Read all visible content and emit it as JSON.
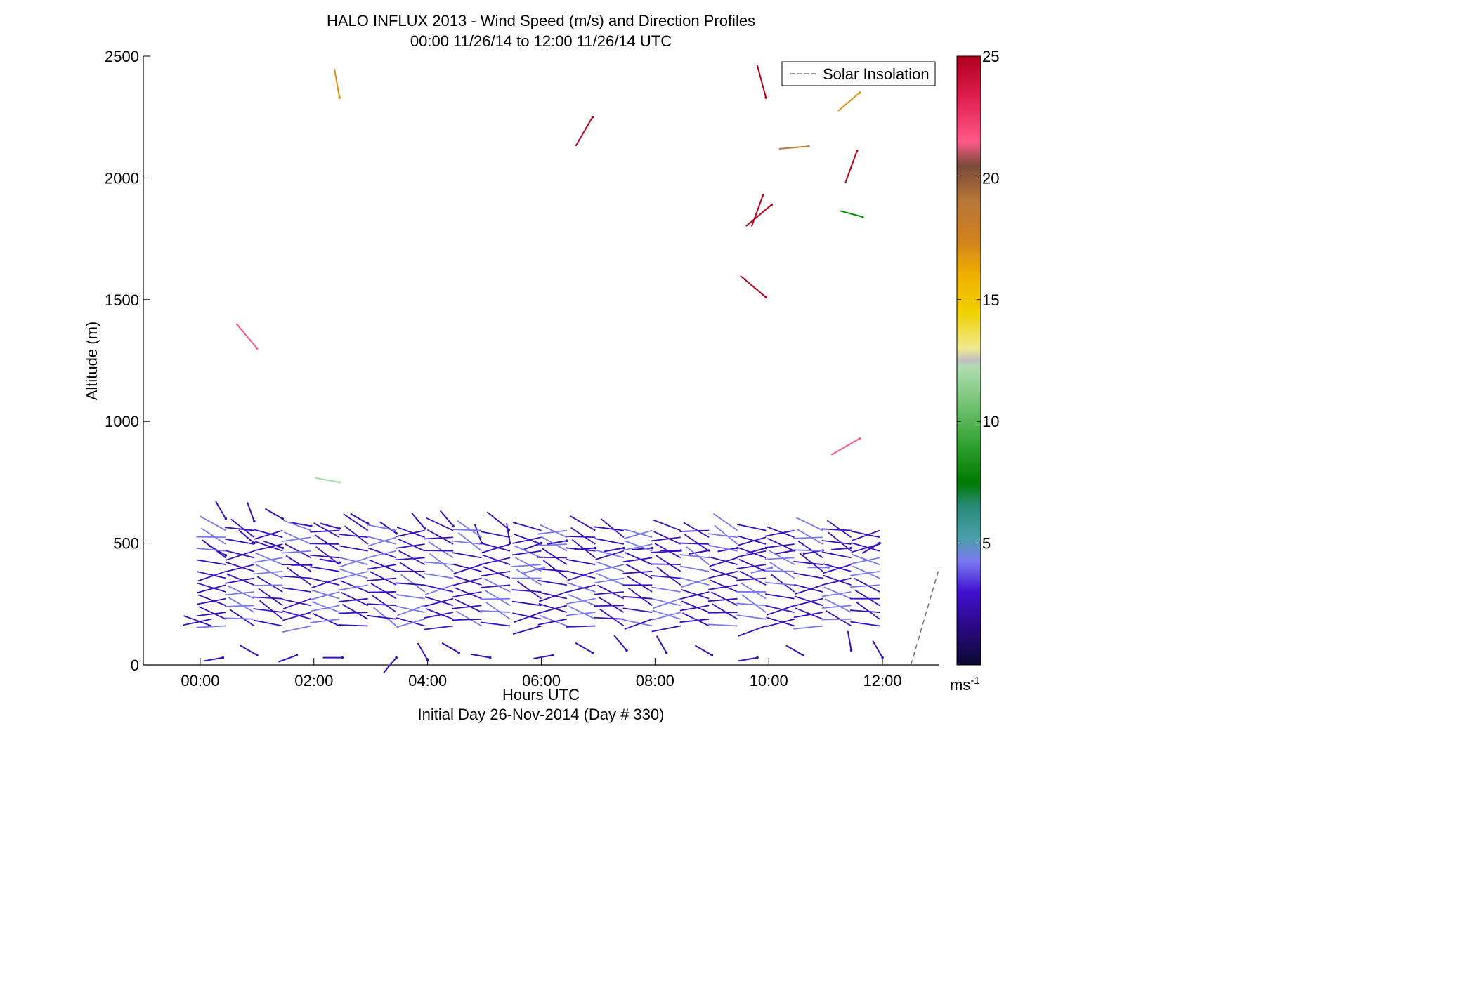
{
  "title_line1": "HALO INFLUX 2013 - Wind Speed (m/s) and Direction Profiles",
  "title_line2": "00:00 11/26/14 to 12:00 11/26/14  UTC",
  "xlabel": "Hours UTC",
  "xlabel2": "Initial Day 26-Nov-2014 (Day # 330)",
  "ylabel": "Altitude (m)",
  "legend": {
    "label": "Solar Insolation",
    "style": "dashed"
  },
  "colorbar": {
    "unit_base": "ms",
    "unit_exp": "-1",
    "range": [
      0,
      25
    ],
    "ticks": [
      "5",
      "10",
      "15",
      "20",
      "25"
    ]
  },
  "chart_data": {
    "type": "scatter",
    "title": "HALO INFLUX 2013 - Wind Speed (m/s) and Direction Profiles",
    "xlabel": "Hours UTC",
    "ylabel": "Altitude (m)",
    "xlim": [
      -1,
      13
    ],
    "ylim": [
      0,
      2500
    ],
    "xticks": [
      0,
      2,
      4,
      6,
      8,
      10,
      12
    ],
    "xtick_labels": [
      "00:00",
      "02:00",
      "04:00",
      "06:00",
      "08:00",
      "10:00",
      "12:00"
    ],
    "yticks": [
      0,
      500,
      1000,
      1500,
      2000,
      2500
    ],
    "ytick_labels": [
      "0",
      "500",
      "1000",
      "1500",
      "2000",
      "2500"
    ],
    "legend_position": "top-right",
    "colormap": [
      "#0a0a30",
      "#3a10c0",
      "#7a7af0",
      "#4aa0a8",
      "#009000",
      "#a8dca8",
      "#c8c8c8",
      "#f0d000",
      "#e09010",
      "#b87838",
      "#7a4a3a",
      "#ff5a8a",
      "#b0001e"
    ],
    "vector_barbs_note": "each barb: [hours, altitude_m, speed_ms, direction_deg]",
    "barbs": [
      [
        0.45,
        450,
        3,
        300
      ],
      [
        0.45,
        600,
        3,
        330
      ],
      [
        0.95,
        590,
        3,
        340
      ],
      [
        0.95,
        500,
        3,
        310
      ],
      [
        1.45,
        600,
        3,
        300
      ],
      [
        1.45,
        480,
        3,
        290
      ],
      [
        1.95,
        570,
        3,
        280
      ],
      [
        1.95,
        410,
        3,
        270
      ],
      [
        2.45,
        560,
        3,
        285
      ],
      [
        2.45,
        420,
        3,
        280
      ],
      [
        2.95,
        580,
        3,
        300
      ],
      [
        3.45,
        540,
        3,
        305
      ],
      [
        3.95,
        560,
        3,
        320
      ],
      [
        4.45,
        570,
        3,
        320
      ],
      [
        4.95,
        500,
        3,
        340
      ],
      [
        5.45,
        500,
        3,
        350
      ],
      [
        6.0,
        500,
        3,
        250
      ],
      [
        6.45,
        510,
        3,
        260
      ],
      [
        6.95,
        480,
        3,
        265
      ],
      [
        7.45,
        480,
        3,
        260
      ],
      [
        7.95,
        480,
        3,
        265
      ],
      [
        8.45,
        470,
        3,
        270
      ],
      [
        8.95,
        470,
        3,
        260
      ],
      [
        9.45,
        480,
        3,
        260
      ],
      [
        9.95,
        480,
        3,
        255
      ],
      [
        10.45,
        470,
        3,
        260
      ],
      [
        10.95,
        470,
        3,
        260
      ],
      [
        11.45,
        480,
        3,
        265
      ],
      [
        11.95,
        500,
        3,
        240
      ],
      [
        6.05,
        400,
        5,
        255
      ],
      [
        10.05,
        400,
        5,
        255
      ],
      [
        11.05,
        400,
        4,
        270
      ],
      [
        2.45,
        750,
        11,
        280
      ],
      [
        1.0,
        1300,
        22,
        320
      ],
      [
        2.45,
        2330,
        17,
        350
      ],
      [
        6.9,
        2250,
        24,
        210
      ],
      [
        9.95,
        2330,
        24,
        345
      ],
      [
        11.6,
        2350,
        16,
        230
      ],
      [
        10.7,
        2130,
        18,
        265
      ],
      [
        11.55,
        2110,
        24,
        200
      ],
      [
        9.9,
        1930,
        24,
        200
      ],
      [
        10.05,
        1890,
        24,
        230
      ],
      [
        11.65,
        1840,
        9,
        285
      ],
      [
        9.95,
        1510,
        24,
        310
      ],
      [
        11.6,
        930,
        23,
        240
      ],
      [
        0.4,
        30,
        2,
        260
      ],
      [
        1.0,
        40,
        2,
        300
      ],
      [
        1.7,
        40,
        2,
        250
      ],
      [
        2.5,
        30,
        2,
        270
      ],
      [
        3.45,
        30,
        2,
        220
      ],
      [
        4.0,
        20,
        2,
        330
      ],
      [
        4.55,
        50,
        2,
        300
      ],
      [
        5.1,
        30,
        2,
        280
      ],
      [
        6.2,
        40,
        2,
        260
      ],
      [
        6.9,
        50,
        2,
        300
      ],
      [
        7.5,
        60,
        2,
        320
      ],
      [
        8.2,
        50,
        2,
        330
      ],
      [
        9.0,
        40,
        2,
        300
      ],
      [
        9.8,
        30,
        2,
        260
      ],
      [
        10.6,
        40,
        2,
        300
      ],
      [
        11.45,
        60,
        2,
        350
      ],
      [
        12.0,
        30,
        2,
        330
      ]
    ],
    "solar_insolation": {
      "x": [
        12.5,
        13.0
      ],
      "y": [
        0,
        400
      ]
    }
  }
}
